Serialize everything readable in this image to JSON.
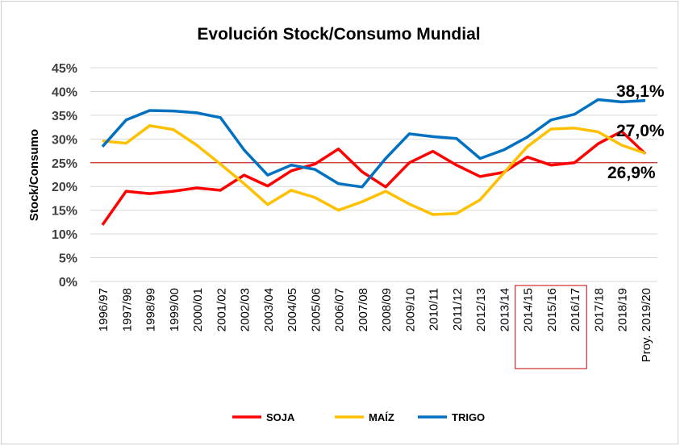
{
  "chart_data": {
    "type": "line",
    "title": "Evolución Stock/Consumo Mundial",
    "ylabel": "Stock/Consumo",
    "xlabel": "",
    "ylim": [
      0,
      45
    ],
    "yticks": [
      "0%",
      "5%",
      "10%",
      "15%",
      "20%",
      "25%",
      "30%",
      "35%",
      "40%",
      "45%"
    ],
    "grid": true,
    "legend": "bottom",
    "categories": [
      "1996/97",
      "1997/98",
      "1998/99",
      "1999/00",
      "2000/01",
      "2001/02",
      "2002/03",
      "2003/04",
      "2004/05",
      "2005/06",
      "2006/07",
      "2007/08",
      "2008/09",
      "2009/10",
      "2010/11",
      "2011/12",
      "2012/13",
      "2013/14",
      "2014/15",
      "2015/16",
      "2016/17",
      "2017/18",
      "2018/19",
      "Proy. 2019/20"
    ],
    "series": [
      {
        "name": "SOJA",
        "color": "#ff0000",
        "values": [
          11.9,
          19.0,
          18.5,
          19.0,
          19.7,
          19.2,
          22.4,
          20.1,
          23.3,
          24.7,
          27.9,
          23.1,
          19.9,
          25.0,
          27.4,
          24.5,
          22.1,
          23.0,
          26.2,
          24.5,
          25.0,
          29.0,
          31.6,
          26.9
        ]
      },
      {
        "name": "MAÍZ",
        "color": "#ffc000",
        "values": [
          29.6,
          29.1,
          32.8,
          32.0,
          28.7,
          24.7,
          20.6,
          16.2,
          19.2,
          17.7,
          15.0,
          16.8,
          19.0,
          16.3,
          14.1,
          14.3,
          17.2,
          22.8,
          28.4,
          32.1,
          32.3,
          31.5,
          28.7,
          27.0
        ]
      },
      {
        "name": "TRIGO",
        "color": "#0070c0",
        "values": [
          28.4,
          34.0,
          36.0,
          35.9,
          35.5,
          34.5,
          27.7,
          22.4,
          24.5,
          23.6,
          20.6,
          19.9,
          25.9,
          31.1,
          30.5,
          30.1,
          25.9,
          27.7,
          30.4,
          34.0,
          35.2,
          38.3,
          37.8,
          38.1
        ]
      }
    ],
    "reference_line": {
      "value": 25,
      "color": "#c00000"
    },
    "annotations": [
      "38,1%",
      "27,0%",
      "26,9%"
    ],
    "highlighted_categories": [
      "2014/15",
      "2015/16",
      "2016/17"
    ],
    "highlight_color": "#c00000"
  }
}
